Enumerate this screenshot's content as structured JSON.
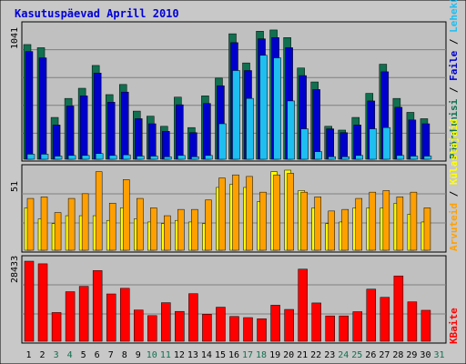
{
  "title": "Kasutuspäevad Aprill 2010",
  "colors": {
    "background": "#C8C8C8",
    "plot_bg": "#C0C0C0",
    "frame": "#000000",
    "grid": "#7F7F7F",
    "title": "#0000D8",
    "pages": "#0000CC",
    "hits": "#1EBEF0",
    "visits": "#107050",
    "visitors": "#FFFF00",
    "files_alt": "#FFA000",
    "kbytes": "#FF0000",
    "day_weekday": "#000000",
    "day_weekend": "#107050"
  },
  "chart_data": [
    {
      "type": "bar",
      "panel": "top",
      "categories": [
        "1",
        "2",
        "3",
        "4",
        "5",
        "6",
        "7",
        "8",
        "9",
        "10",
        "11",
        "12",
        "13",
        "14",
        "15",
        "16",
        "17",
        "18",
        "19",
        "20",
        "21",
        "22",
        "23",
        "24",
        "25",
        "26",
        "27",
        "28",
        "29",
        "30",
        "31"
      ],
      "ymax_label": "1041",
      "ylim": [
        0,
        1041
      ],
      "series": [
        {
          "name": "Pöördumisi",
          "values": [
            905,
            880,
            330,
            480,
            560,
            740,
            510,
            590,
            380,
            340,
            260,
            490,
            250,
            500,
            640,
            990,
            760,
            1010,
            1020,
            960,
            720,
            610,
            260,
            230,
            330,
            520,
            750,
            480,
            370,
            320,
            0
          ]
        },
        {
          "name": "Faile",
          "values": [
            850,
            800,
            270,
            420,
            500,
            680,
            450,
            530,
            320,
            280,
            220,
            430,
            210,
            440,
            580,
            920,
            700,
            950,
            960,
            880,
            660,
            550,
            240,
            210,
            270,
            460,
            690,
            410,
            310,
            280,
            0
          ]
        },
        {
          "name": "Lehekülgi",
          "values": [
            40,
            40,
            25,
            30,
            30,
            45,
            30,
            35,
            25,
            25,
            20,
            30,
            20,
            30,
            280,
            700,
            480,
            820,
            800,
            460,
            240,
            60,
            20,
            20,
            30,
            240,
            250,
            30,
            25,
            25,
            0
          ]
        }
      ]
    },
    {
      "type": "bar",
      "panel": "middle",
      "categories": [
        "1",
        "2",
        "3",
        "4",
        "5",
        "6",
        "7",
        "8",
        "9",
        "10",
        "11",
        "12",
        "13",
        "14",
        "15",
        "16",
        "17",
        "18",
        "19",
        "20",
        "21",
        "22",
        "23",
        "24",
        "25",
        "26",
        "27",
        "28",
        "29",
        "30",
        "31"
      ],
      "ymax_label": "51",
      "ylim": [
        0,
        51
      ],
      "series": [
        {
          "name": "Külastajaid",
          "values": [
            27,
            20,
            17,
            22,
            22,
            22,
            19,
            27,
            20,
            18,
            17,
            19,
            18,
            17,
            40,
            42,
            40,
            31,
            50,
            51,
            38,
            27,
            17,
            18,
            27,
            27,
            27,
            30,
            23,
            18,
            0
          ]
        },
        {
          "name": "Arvuteid",
          "values": [
            33,
            34,
            24,
            33,
            36,
            50,
            30,
            45,
            33,
            27,
            22,
            26,
            26,
            32,
            46,
            48,
            47,
            37,
            48,
            49,
            37,
            34,
            25,
            26,
            33,
            37,
            38,
            34,
            37,
            27,
            0
          ]
        }
      ]
    },
    {
      "type": "bar",
      "panel": "bottom",
      "categories": [
        "1",
        "2",
        "3",
        "4",
        "5",
        "6",
        "7",
        "8",
        "9",
        "10",
        "11",
        "12",
        "13",
        "14",
        "15",
        "16",
        "17",
        "18",
        "19",
        "20",
        "21",
        "22",
        "23",
        "24",
        "25",
        "26",
        "27",
        "28",
        "29",
        "30",
        "31"
      ],
      "ymax_label": "28433",
      "ylim": [
        0,
        28433
      ],
      "series": [
        {
          "name": "KBaite",
          "values": [
            28433,
            27500,
            10200,
            17600,
            19500,
            25100,
            16800,
            18800,
            11100,
            9100,
            13700,
            10600,
            16900,
            9600,
            12100,
            8800,
            8400,
            8000,
            12800,
            11300,
            25600,
            13600,
            9000,
            9000,
            10500,
            18500,
            15600,
            23200,
            14000,
            11000,
            0
          ]
        }
      ]
    }
  ],
  "right_legend": {
    "top": [
      "Pöördumisi",
      "Faile",
      "Lehekülgi"
    ],
    "middle": [
      "Külastajaid",
      "Arvuteid"
    ],
    "bottom": [
      "KBaite"
    ]
  },
  "weekend_days": [
    "3",
    "4",
    "10",
    "11",
    "17",
    "18",
    "24",
    "25",
    "31"
  ]
}
